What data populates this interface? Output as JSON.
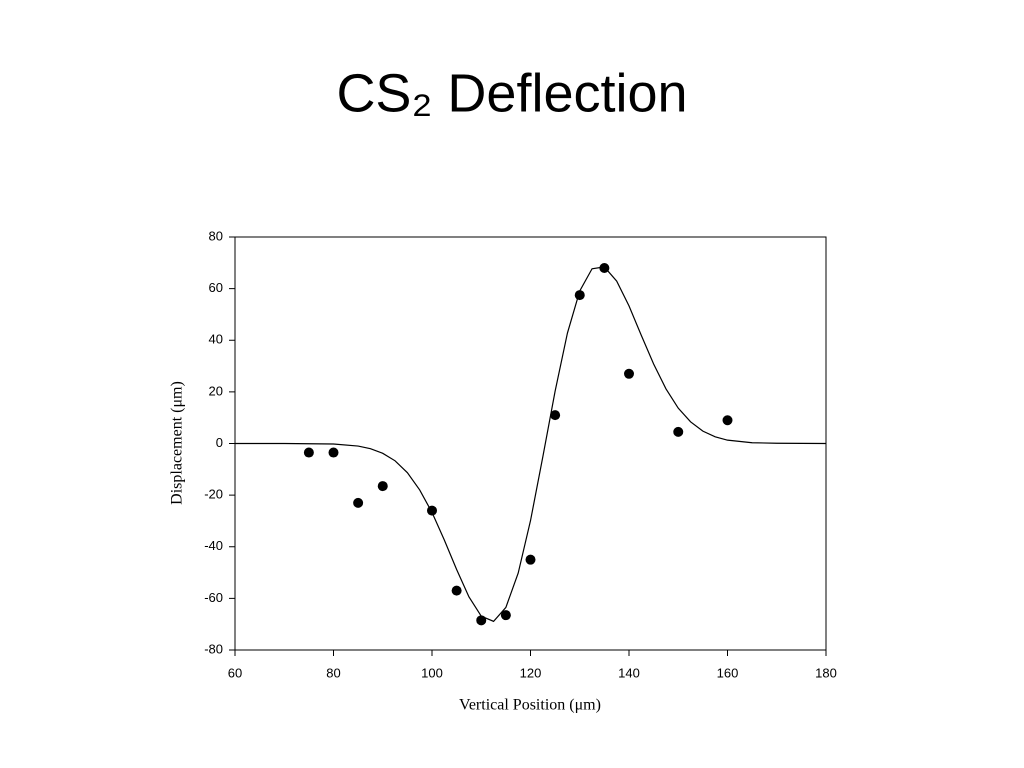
{
  "chart_data": {
    "type": "scatter",
    "title": "CS₂ Deflection",
    "xlabel": "Vertical Position (μm)",
    "ylabel": "Displacement (μm)",
    "xlim": [
      60,
      180
    ],
    "ylim": [
      -80,
      80
    ],
    "xticks": [
      60,
      80,
      100,
      120,
      140,
      160,
      180
    ],
    "yticks": [
      -80,
      -60,
      -40,
      -20,
      0,
      20,
      40,
      60,
      80
    ],
    "series": [
      {
        "type": "line",
        "color": "#000000",
        "x": [
          60,
          70,
          80,
          85,
          87.5,
          90,
          92.5,
          95,
          97.5,
          100,
          102.5,
          105,
          107.5,
          110,
          112.5,
          115,
          117.5,
          120,
          122.5,
          125,
          127.5,
          130,
          132.5,
          135,
          137.5,
          140,
          142.5,
          145,
          147.5,
          150,
          152.5,
          155,
          157.5,
          160,
          165,
          170,
          180
        ],
        "values": [
          0,
          0,
          -0.2,
          -1.0,
          -2.0,
          -3.8,
          -6.7,
          -11.3,
          -18.0,
          -26.7,
          -37.4,
          -48.8,
          -59.4,
          -66.9,
          -68.9,
          -63.5,
          -50.2,
          -29.9,
          -5.2,
          20.3,
          42.8,
          59.1,
          67.7,
          68.4,
          62.9,
          53.3,
          41.9,
          30.8,
          21.2,
          13.7,
          8.4,
          4.8,
          2.6,
          1.3,
          0.3,
          0.1,
          0
        ]
      },
      {
        "type": "scatter",
        "color": "#000000",
        "x": [
          75,
          80,
          85,
          90,
          100,
          105,
          110,
          115,
          120,
          125,
          130,
          135,
          140,
          150,
          160
        ],
        "values": [
          -3.5,
          -3.5,
          -23,
          -16.5,
          -26,
          -57,
          -68.5,
          -66.5,
          -45,
          11,
          57.5,
          68,
          27,
          4.5,
          9
        ]
      }
    ]
  }
}
